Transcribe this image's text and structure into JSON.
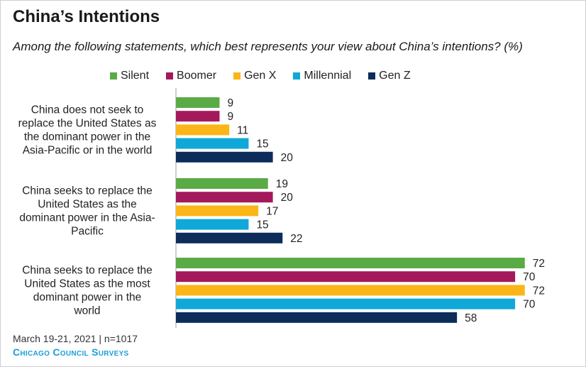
{
  "chart_data": {
    "type": "bar",
    "orientation": "horizontal",
    "title": "China’s Intentions",
    "subtitle": "Among the following statements, which best represents your view about China’s intentions? (%)",
    "categories": [
      [
        "China does not seek to",
        "replace the United States as",
        "the dominant power in the",
        "Asia-Pacific or in the world"
      ],
      [
        "China seeks to replace the",
        "United States as the",
        "dominant power in the Asia-",
        "Pacific"
      ],
      [
        "China seeks to replace the",
        "United States as the most",
        "dominant power in the",
        "world"
      ]
    ],
    "series": [
      {
        "name": "Silent",
        "color": "#5aab46",
        "values": [
          9,
          19,
          72
        ]
      },
      {
        "name": "Boomer",
        "color": "#a3195b",
        "values": [
          9,
          20,
          70
        ]
      },
      {
        "name": "Gen X",
        "color": "#fbb516",
        "values": [
          11,
          17,
          72
        ]
      },
      {
        "name": "Millennial",
        "color": "#0fa8d8",
        "values": [
          15,
          15,
          70
        ]
      },
      {
        "name": "Gen Z",
        "color": "#0d2c5a",
        "values": [
          20,
          22,
          58
        ]
      }
    ],
    "legend_position": "top",
    "grid": false
  },
  "footer": {
    "date": "March 19-21, 2021 | n=1017",
    "brand": "Chicago Council Surveys"
  }
}
